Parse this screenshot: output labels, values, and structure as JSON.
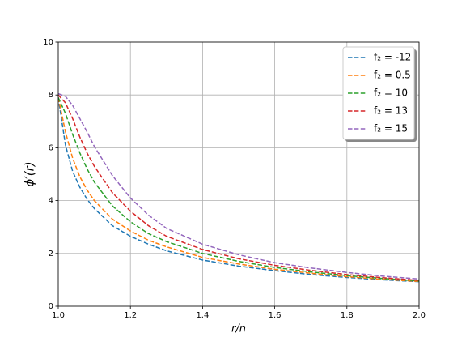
{
  "chart_data": {
    "type": "line",
    "xlabel": "r/n",
    "ylabel": "ϕ′(r)",
    "x": [
      1.0,
      1.02,
      1.04,
      1.06,
      1.08,
      1.1,
      1.15,
      1.2,
      1.25,
      1.3,
      1.4,
      1.5,
      1.6,
      1.7,
      1.8,
      1.9,
      2.0
    ],
    "series": [
      {
        "name": "f₂ = -12",
        "color": "#1f77b4",
        "values": [
          7.9,
          6.1,
          5.1,
          4.5,
          4.05,
          3.7,
          3.05,
          2.65,
          2.35,
          2.1,
          1.75,
          1.52,
          1.35,
          1.2,
          1.09,
          1.0,
          0.93
        ]
      },
      {
        "name": "f₂ = 0.5",
        "color": "#ff7f0e",
        "values": [
          7.9,
          6.6,
          5.6,
          4.9,
          4.4,
          4.0,
          3.3,
          2.85,
          2.5,
          2.25,
          1.85,
          1.6,
          1.4,
          1.25,
          1.12,
          1.02,
          0.94
        ]
      },
      {
        "name": "f₂ = 10",
        "color": "#2ca02c",
        "values": [
          7.9,
          7.3,
          6.5,
          5.8,
          5.2,
          4.7,
          3.8,
          3.2,
          2.75,
          2.45,
          2.0,
          1.7,
          1.47,
          1.3,
          1.16,
          1.05,
          0.96
        ]
      },
      {
        "name": "f₂ = 13",
        "color": "#d62728",
        "values": [
          8.0,
          7.7,
          7.1,
          6.4,
          5.8,
          5.3,
          4.3,
          3.6,
          3.05,
          2.65,
          2.15,
          1.8,
          1.55,
          1.36,
          1.2,
          1.08,
          0.98
        ]
      },
      {
        "name": "f₂ = 15",
        "color": "#9467bd",
        "values": [
          8.05,
          7.95,
          7.6,
          7.1,
          6.6,
          6.05,
          4.95,
          4.1,
          3.45,
          2.95,
          2.35,
          1.95,
          1.65,
          1.45,
          1.28,
          1.14,
          1.03
        ]
      }
    ],
    "xlim": [
      1.0,
      2.0
    ],
    "xticks": [
      {
        "value": 1.0,
        "label": "1.0"
      },
      1.2,
      1.4,
      1.6,
      1.8,
      {
        "value": 2.0,
        "label": "2.0"
      }
    ],
    "ylim": [
      0,
      10
    ],
    "yticks": [
      0,
      2,
      4,
      6,
      8,
      10
    ],
    "grid": true,
    "legend": "upper right",
    "dashed": true
  }
}
